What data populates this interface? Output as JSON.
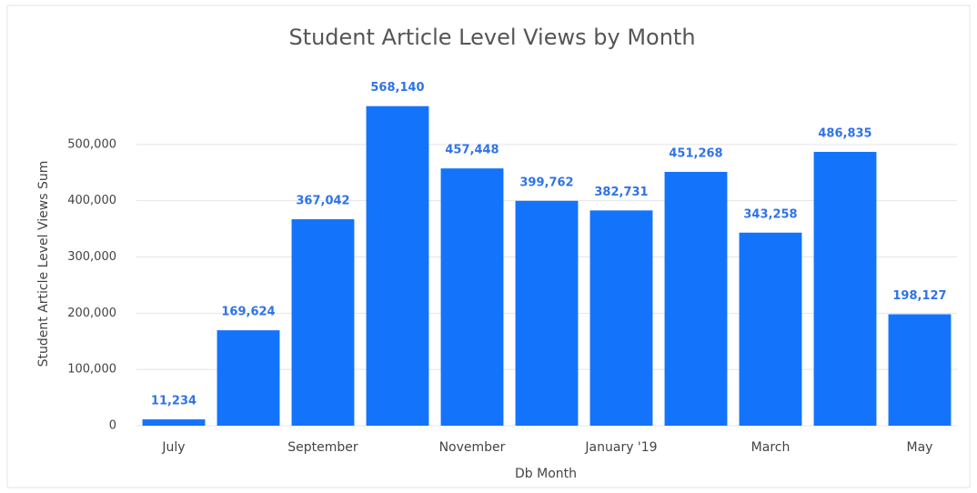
{
  "chart_data": {
    "type": "bar",
    "title": "Student Article Level Views by Month",
    "x_label": "Db Month",
    "y_label": "Student Article Level Views Sum",
    "categories": [
      "July",
      null,
      "September",
      null,
      "November",
      null,
      "January '19",
      null,
      "March",
      null,
      "May"
    ],
    "values": [
      11234,
      169624,
      367042,
      568140,
      457448,
      399762,
      382731,
      451268,
      343258,
      486835,
      198127
    ],
    "value_labels": [
      "11,234",
      "169,624",
      "367,042",
      "568,140",
      "457,448",
      "399,762",
      "382,731",
      "451,268",
      "343,258",
      "486,835",
      "198,127"
    ],
    "color": "#1473fb",
    "ylim": [
      0,
      600000
    ],
    "yticks": [
      0,
      {
        "value": 100000,
        "label": "100,000"
      },
      {
        "value": 200000,
        "label": "200,000"
      },
      {
        "value": 300000,
        "label": "300,000"
      },
      {
        "value": 400000,
        "label": "400,000"
      },
      {
        "value": 500000,
        "label": "500,000"
      }
    ],
    "grid": true
  }
}
